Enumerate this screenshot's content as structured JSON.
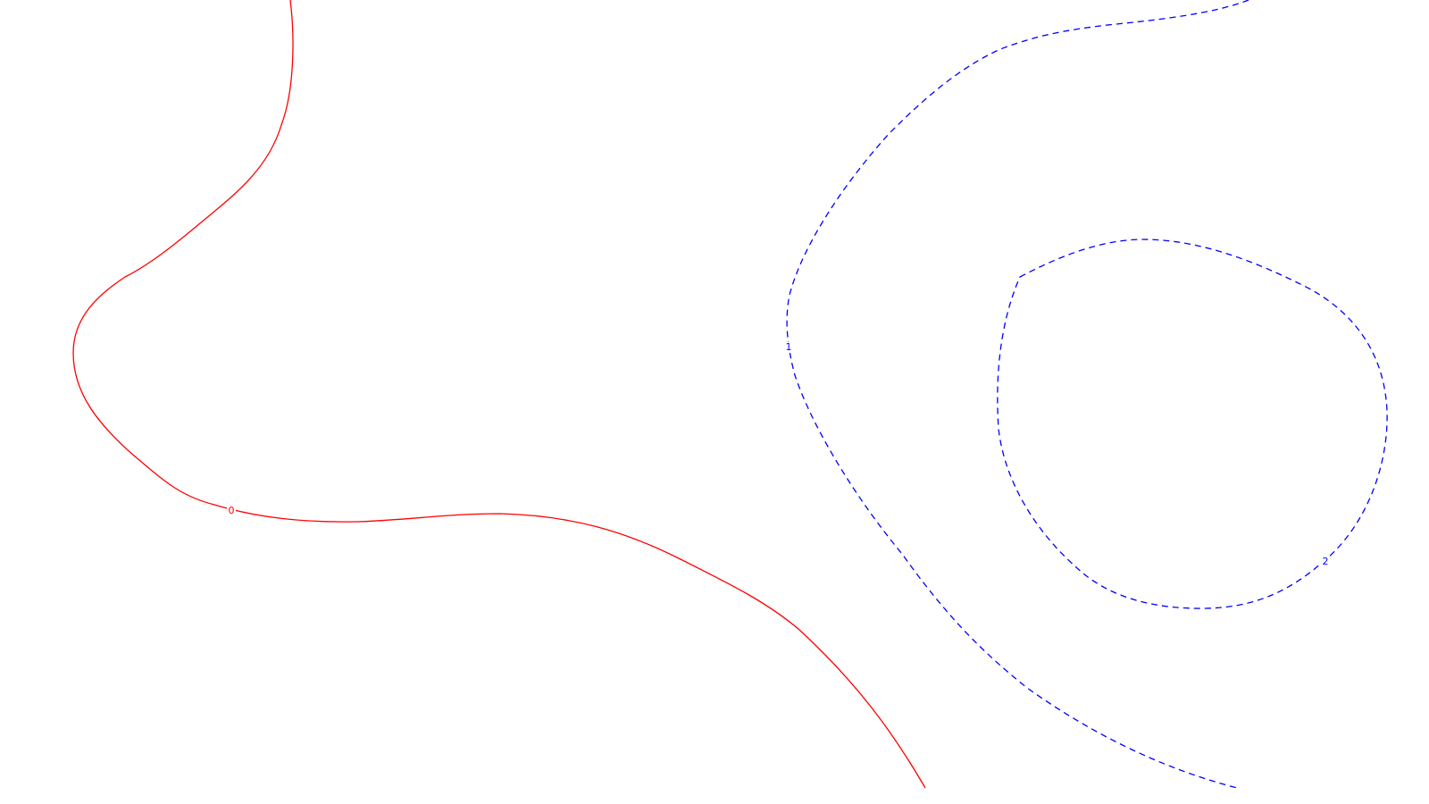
{
  "chart_data": {
    "type": "contour",
    "title": "",
    "xlabel": "",
    "ylabel": "",
    "grid": false,
    "contours": [
      {
        "level": 0,
        "label": "0",
        "color": "#ff0000",
        "style": "solid"
      },
      {
        "level": 1,
        "label": "1",
        "color": "#0000ff",
        "style": "dashed"
      },
      {
        "level": 2,
        "label": "2",
        "color": "#0000ff",
        "style": "dashed"
      }
    ]
  }
}
